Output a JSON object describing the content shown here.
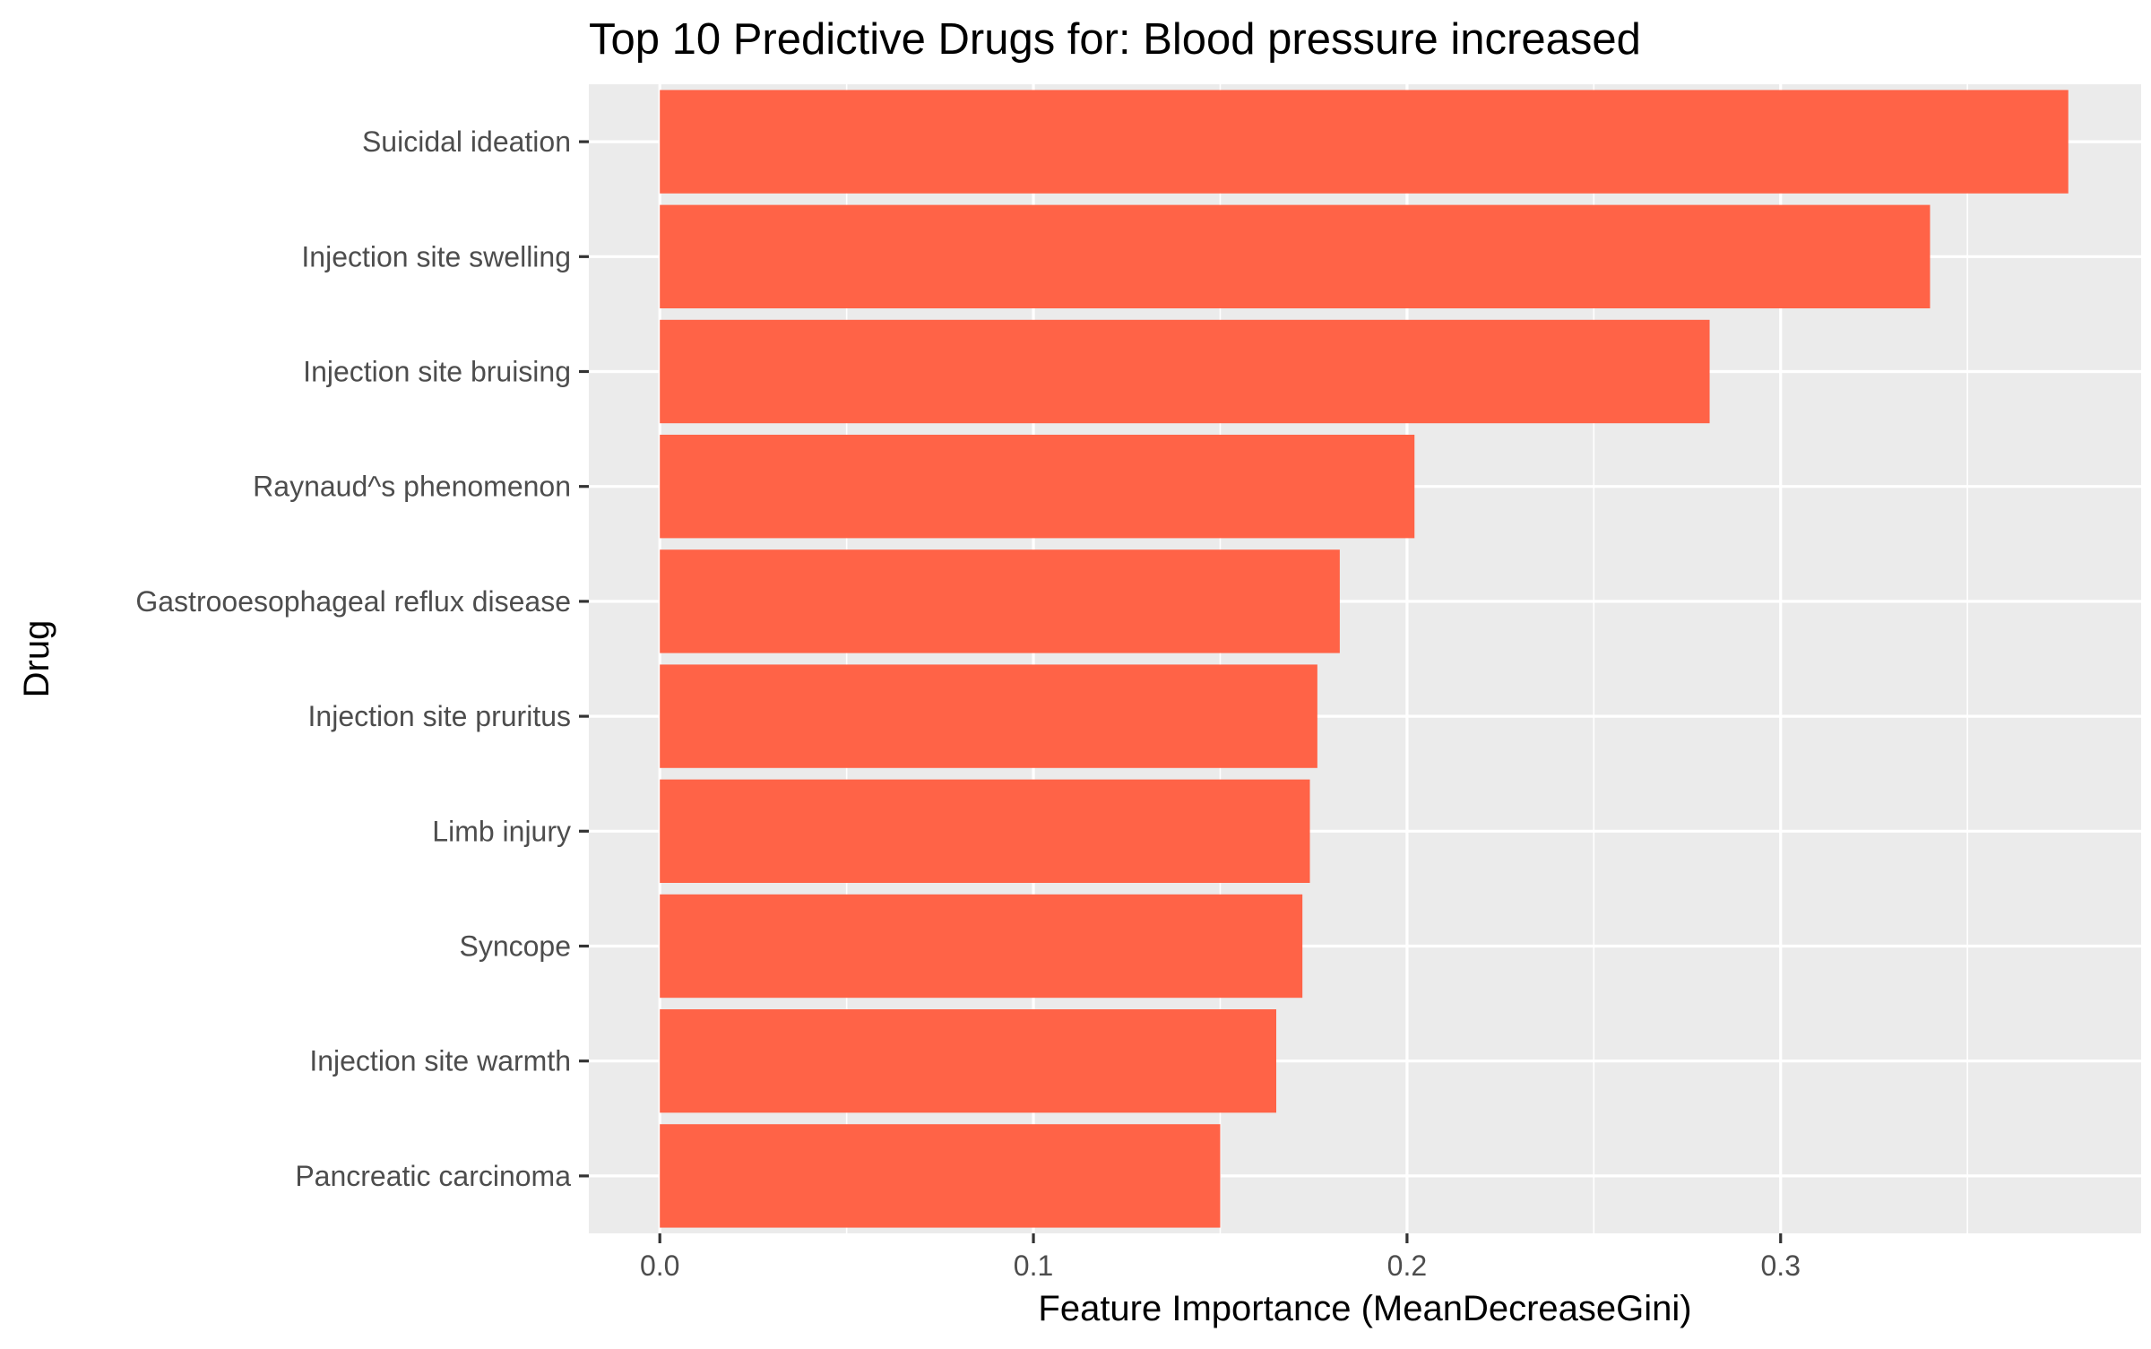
{
  "chart_data": {
    "type": "bar",
    "orientation": "horizontal",
    "title": "Top 10 Predictive Drugs for: Blood pressure increased",
    "xlabel": "Feature Importance (MeanDecreaseGini)",
    "ylabel": "Drug",
    "categories": [
      "Suicidal ideation",
      "Injection site swelling",
      "Injection site bruising",
      "Raynaud^s phenomenon",
      "Gastrooesophageal reflux disease",
      "Injection site pruritus",
      "Limb injury",
      "Syncope",
      "Injection site warmth",
      "Pancreatic carcinoma"
    ],
    "values": [
      0.377,
      0.34,
      0.281,
      0.202,
      0.182,
      0.176,
      0.174,
      0.172,
      0.165,
      0.15
    ],
    "xlim": [
      -0.019,
      0.3965
    ],
    "xticks": [
      0.0,
      0.1,
      0.2,
      0.3
    ],
    "xtick_labels": [
      "0.0",
      "0.1",
      "0.2",
      "0.3"
    ],
    "grid": true,
    "legend": "none",
    "colors": {
      "bar": "#ff6347",
      "panel_background": "#ebebeb",
      "grid_line": "#ffffff",
      "tick_text": "#4d4d4d",
      "tick_mark": "#333333"
    }
  }
}
